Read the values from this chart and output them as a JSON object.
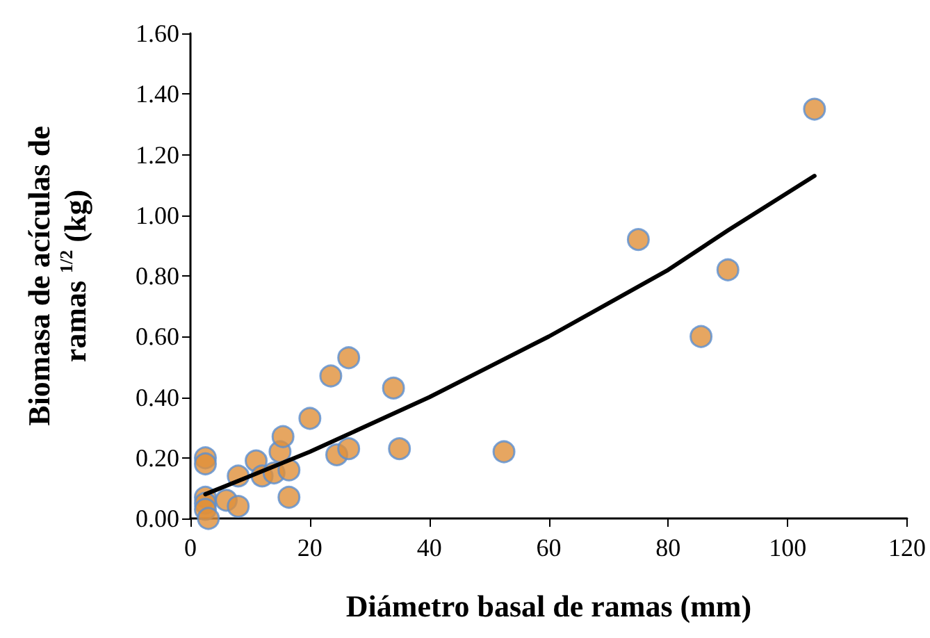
{
  "chart_data": {
    "type": "scatter",
    "xlabel": "Diámetro basal de ramas (mm)",
    "ylabel": "Biomasa de acículas de ramas $^{1/2}$ (kg)",
    "xlim": [
      0,
      120
    ],
    "xticks": [
      0,
      20,
      40,
      60,
      80,
      100,
      120
    ],
    "ylim": [
      0,
      1.6
    ],
    "yticks": [
      {
        "value": 0,
        "label": "0.00"
      },
      {
        "value": 0.2,
        "label": "0.20"
      },
      {
        "value": 0.4,
        "label": "0.40"
      },
      {
        "value": 0.6,
        "label": "0.60"
      },
      {
        "value": 0.8,
        "label": "0.80"
      },
      {
        "value": 1.0,
        "label": "1.00"
      },
      {
        "value": 1.2,
        "label": "1.20"
      },
      {
        "value": 1.4,
        "label": "1.40"
      },
      {
        "value": 1.6,
        "label": "1.60"
      }
    ],
    "grid": false,
    "series": [
      {
        "type": "scatter",
        "marker": "circle",
        "color": "#e0903a",
        "x": [
          2.5,
          2.5,
          2.5,
          2.5,
          2.5,
          3,
          6,
          8,
          8,
          11,
          12,
          14,
          15,
          15.5,
          16.5,
          16.5,
          20,
          23.5,
          24.5,
          26.5,
          26.5,
          34,
          35,
          52.5,
          75,
          85.5,
          90,
          104.5
        ],
        "values": [
          0.2,
          0.18,
          0.07,
          0.05,
          0.03,
          0.0,
          0.06,
          0.04,
          0.14,
          0.19,
          0.14,
          0.15,
          0.22,
          0.27,
          0.16,
          0.07,
          0.33,
          0.47,
          0.21,
          0.53,
          0.23,
          0.43,
          0.23,
          0.22,
          0.92,
          0.6,
          0.82,
          1.35
        ]
      },
      {
        "type": "line",
        "marker": "none",
        "line_style": "solid",
        "color": "#000000",
        "x": [
          2.5,
          10,
          20,
          30,
          40,
          50,
          60,
          70,
          80,
          90,
          104.5
        ],
        "values": [
          0.08,
          0.14,
          0.22,
          0.31,
          0.4,
          0.5,
          0.6,
          0.71,
          0.82,
          0.95,
          1.13
        ]
      }
    ]
  }
}
